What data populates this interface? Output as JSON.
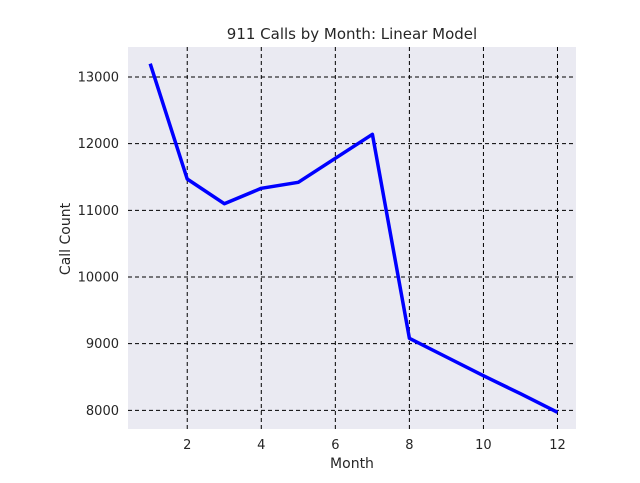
{
  "chart_data": {
    "type": "line",
    "title": "911 Calls by Month: Linear Model",
    "xlabel": "Month",
    "ylabel": "Call Count",
    "xlim": [
      0.4,
      12.5
    ],
    "ylim": [
      7720,
      13450
    ],
    "xticks": [
      2,
      4,
      6,
      8,
      10,
      12
    ],
    "yticks": [
      8000,
      9000,
      10000,
      11000,
      12000,
      13000
    ],
    "grid": true,
    "background_color": "#eaeaf2",
    "series": [
      {
        "color": "#0000ff",
        "x": [
          1,
          2,
          3,
          4,
          5,
          6,
          7,
          8,
          9,
          10,
          11,
          12
        ],
        "y": [
          13200,
          11470,
          11100,
          11330,
          11420,
          11780,
          12140,
          9080,
          8800,
          8520,
          8250,
          7970
        ]
      }
    ]
  }
}
